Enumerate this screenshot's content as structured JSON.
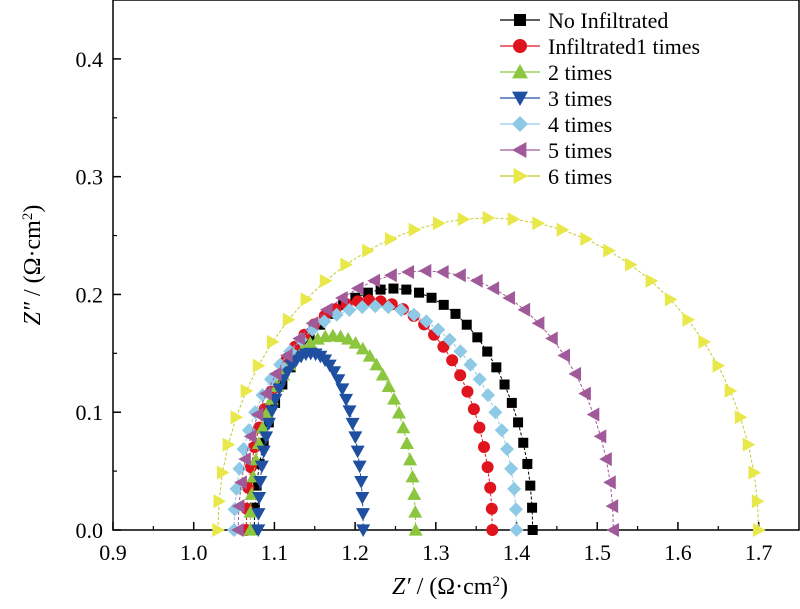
{
  "chart_data": {
    "type": "scatter",
    "xlabel_parts": {
      "symbol": "Z′",
      "unit_open": " / (Ω·cm",
      "sup": "2",
      "unit_close": ")"
    },
    "ylabel_parts": {
      "symbol": "Z″",
      "unit_open": " / (Ω·cm",
      "sup": "2",
      "unit_close": ")"
    },
    "xlim": [
      0.9,
      1.75
    ],
    "ylim": [
      0,
      0.45
    ],
    "x_ticks": [
      "0.9",
      "1.0",
      "1.1",
      "1.2",
      "1.3",
      "1.4",
      "1.5",
      "1.6",
      "1.7"
    ],
    "y_ticks": [
      "0.0",
      "0.1",
      "0.2",
      "0.3",
      "0.4"
    ],
    "legend_position": "top-right",
    "grid": false,
    "series": [
      {
        "name": "No Infiltrated",
        "marker": "square",
        "color": "#000000",
        "x0": 1.075,
        "x1": 1.42,
        "peak": 0.205
      },
      {
        "name": "Infiltrated1 times",
        "marker": "circle",
        "color": "#e0141e",
        "x0": 1.065,
        "x1": 1.37,
        "peak": 0.195
      },
      {
        "name": "2 times",
        "marker": "triangle-up",
        "color": "#8cc63f",
        "x0": 1.07,
        "x1": 1.275,
        "peak": 0.165
      },
      {
        "name": "3 times",
        "marker": "triangle-down",
        "color": "#1e4fa0",
        "x0": 1.08,
        "x1": 1.21,
        "peak": 0.15
      },
      {
        "name": "4 times",
        "marker": "diamond",
        "color": "#8ecae6",
        "x0": 1.05,
        "x1": 1.4,
        "peak": 0.19
      },
      {
        "name": "5 times",
        "marker": "triangle-left",
        "color": "#a05a9a",
        "x0": 1.055,
        "x1": 1.52,
        "peak": 0.22
      },
      {
        "name": "6 times",
        "marker": "triangle-right",
        "color": "#e8e84a",
        "x0": 1.03,
        "x1": 1.7,
        "peak": 0.265
      }
    ]
  }
}
